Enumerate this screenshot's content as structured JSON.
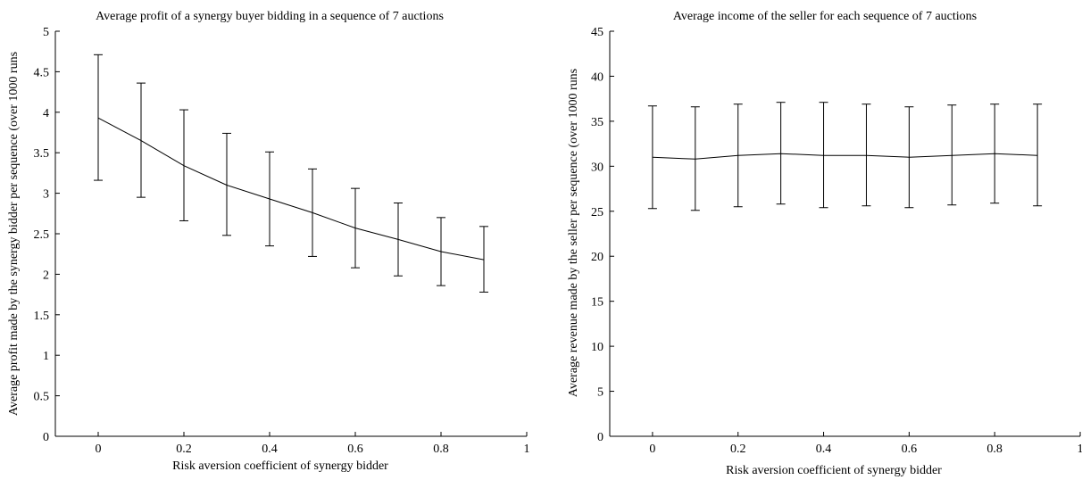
{
  "chart_data": [
    {
      "type": "line",
      "title": "Average profit of a synergy buyer bidding in a sequence of 7 auctions",
      "xlabel": "Risk aversion coefficient of synergy bidder",
      "ylabel": "Average profit made by the synergy bidder per sequence (over 1000 runs",
      "xlim": [
        -0.1,
        1
      ],
      "ylim": [
        0,
        5
      ],
      "xticks": [
        0,
        0.2,
        0.4,
        0.6,
        0.8,
        1
      ],
      "xtick_labels": [
        "0",
        "0.2",
        "0.4",
        "0.6",
        "0.8",
        "1"
      ],
      "yticks": [
        0,
        0.5,
        1,
        1.5,
        2,
        2.5,
        3,
        3.5,
        4,
        4.5,
        5
      ],
      "ytick_labels": [
        "0",
        "0.5",
        "1",
        "1.5",
        "2",
        "2.5",
        "3",
        "3.5",
        "4",
        "4.5",
        "5"
      ],
      "grid": false,
      "color": "#000000",
      "series": [
        {
          "x": [
            0,
            0.1,
            0.2,
            0.3,
            0.4,
            0.5,
            0.6,
            0.7,
            0.8,
            0.9
          ],
          "y": [
            3.93,
            3.65,
            3.34,
            3.1,
            2.93,
            2.76,
            2.57,
            2.43,
            2.28,
            2.18
          ],
          "err_low": [
            3.16,
            2.95,
            2.66,
            2.48,
            2.35,
            2.22,
            2.08,
            1.98,
            1.86,
            1.78
          ],
          "err_high": [
            4.71,
            4.36,
            4.03,
            3.74,
            3.51,
            3.3,
            3.06,
            2.88,
            2.7,
            2.59
          ]
        }
      ]
    },
    {
      "type": "line",
      "title": "Average income of the seller for each sequence of 7 auctions",
      "xlabel": "Risk aversion coefficient of synergy bidder",
      "ylabel": "Average revenue made by the seller per sequence (over 1000 runs",
      "xlim": [
        -0.1,
        1
      ],
      "ylim": [
        0,
        45
      ],
      "xticks": [
        0,
        0.2,
        0.4,
        0.6,
        0.8,
        1
      ],
      "xtick_labels": [
        "0",
        "0.2",
        "0.4",
        "0.6",
        "0.8",
        "1"
      ],
      "yticks": [
        0,
        5,
        10,
        15,
        20,
        25,
        30,
        35,
        40,
        45
      ],
      "ytick_labels": [
        "0",
        "5",
        "10",
        "15",
        "20",
        "25",
        "30",
        "35",
        "40",
        "45"
      ],
      "grid": false,
      "color": "#000000",
      "series": [
        {
          "x": [
            0,
            0.1,
            0.2,
            0.3,
            0.4,
            0.5,
            0.6,
            0.7,
            0.8,
            0.9
          ],
          "y": [
            31.0,
            30.8,
            31.2,
            31.4,
            31.2,
            31.2,
            31.0,
            31.2,
            31.4,
            31.2
          ],
          "err_low": [
            25.3,
            25.1,
            25.5,
            25.8,
            25.4,
            25.6,
            25.4,
            25.7,
            25.9,
            25.6
          ],
          "err_high": [
            36.7,
            36.6,
            36.9,
            37.1,
            37.1,
            36.9,
            36.6,
            36.8,
            36.9,
            36.9
          ]
        }
      ]
    }
  ]
}
